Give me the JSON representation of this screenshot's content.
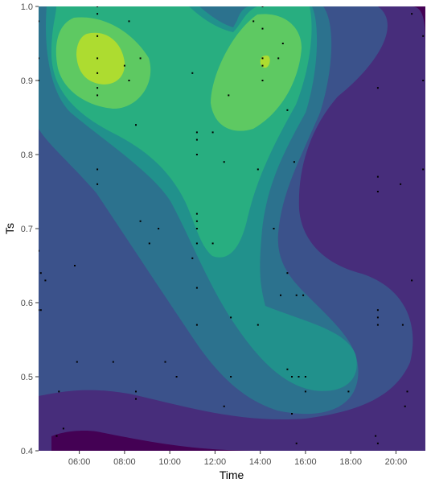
{
  "chart_data": {
    "type": "contour_density",
    "xlabel": "Time",
    "ylabel": "Ts",
    "x_ticks": [
      "06:00",
      "08:00",
      "10:00",
      "12:00",
      "14:00",
      "16:00",
      "18:00",
      "20:00"
    ],
    "y_ticks": [
      "0.4",
      "0.5",
      "0.6",
      "0.7",
      "0.8",
      "0.9",
      "1.0"
    ],
    "x_range_hours": [
      4.2,
      21.3
    ],
    "y_range": [
      0.4,
      1.0
    ],
    "grid": false,
    "legend": "none",
    "fill_levels": [
      "#440154",
      "#472d7b",
      "#3b528b",
      "#2c728e",
      "#21918c",
      "#28ae80",
      "#5ec962",
      "#addc30",
      "#fde725"
    ],
    "point_color": "#000000",
    "density_peaks": [
      {
        "x_hours": 6.8,
        "y": 0.93,
        "level": 8
      },
      {
        "x_hours": 14.1,
        "y": 0.92,
        "level": 8
      }
    ],
    "points": [
      {
        "x": 4.2,
        "y": 0.98
      },
      {
        "x": 4.2,
        "y": 0.93
      },
      {
        "x": 4.2,
        "y": 0.9
      },
      {
        "x": 4.2,
        "y": 0.67
      },
      {
        "x": 4.2,
        "y": 0.59
      },
      {
        "x": 4.3,
        "y": 0.64
      },
      {
        "x": 4.3,
        "y": 0.59
      },
      {
        "x": 4.5,
        "y": 0.63
      },
      {
        "x": 5.0,
        "y": 0.42
      },
      {
        "x": 5.1,
        "y": 0.48
      },
      {
        "x": 5.3,
        "y": 0.43
      },
      {
        "x": 5.8,
        "y": 0.65
      },
      {
        "x": 5.9,
        "y": 0.52
      },
      {
        "x": 6.8,
        "y": 1.0
      },
      {
        "x": 6.8,
        "y": 0.99
      },
      {
        "x": 6.8,
        "y": 0.96
      },
      {
        "x": 6.8,
        "y": 0.93
      },
      {
        "x": 6.8,
        "y": 0.91
      },
      {
        "x": 6.8,
        "y": 0.89
      },
      {
        "x": 6.8,
        "y": 0.88
      },
      {
        "x": 6.8,
        "y": 0.78
      },
      {
        "x": 6.8,
        "y": 0.76
      },
      {
        "x": 7.5,
        "y": 0.52
      },
      {
        "x": 8.0,
        "y": 0.92
      },
      {
        "x": 8.2,
        "y": 0.98
      },
      {
        "x": 8.2,
        "y": 0.9
      },
      {
        "x": 8.5,
        "y": 0.84
      },
      {
        "x": 8.5,
        "y": 0.48
      },
      {
        "x": 8.5,
        "y": 0.47
      },
      {
        "x": 8.7,
        "y": 0.93
      },
      {
        "x": 8.7,
        "y": 0.71
      },
      {
        "x": 9.1,
        "y": 0.68
      },
      {
        "x": 9.5,
        "y": 0.7
      },
      {
        "x": 9.8,
        "y": 0.52
      },
      {
        "x": 10.3,
        "y": 0.5
      },
      {
        "x": 11.0,
        "y": 0.91
      },
      {
        "x": 11.0,
        "y": 0.66
      },
      {
        "x": 11.2,
        "y": 0.83
      },
      {
        "x": 11.2,
        "y": 0.82
      },
      {
        "x": 11.2,
        "y": 0.8
      },
      {
        "x": 11.2,
        "y": 0.72
      },
      {
        "x": 11.2,
        "y": 0.71
      },
      {
        "x": 11.2,
        "y": 0.7
      },
      {
        "x": 11.2,
        "y": 0.68
      },
      {
        "x": 11.2,
        "y": 0.62
      },
      {
        "x": 11.2,
        "y": 0.57
      },
      {
        "x": 11.9,
        "y": 0.83
      },
      {
        "x": 11.9,
        "y": 0.68
      },
      {
        "x": 12.4,
        "y": 0.79
      },
      {
        "x": 12.4,
        "y": 0.46
      },
      {
        "x": 12.6,
        "y": 0.88
      },
      {
        "x": 12.7,
        "y": 0.58
      },
      {
        "x": 12.7,
        "y": 0.5
      },
      {
        "x": 13.7,
        "y": 0.98
      },
      {
        "x": 13.9,
        "y": 0.78
      },
      {
        "x": 13.9,
        "y": 0.57
      },
      {
        "x": 14.1,
        "y": 1.0
      },
      {
        "x": 14.1,
        "y": 0.97
      },
      {
        "x": 14.1,
        "y": 0.93
      },
      {
        "x": 14.1,
        "y": 0.92
      },
      {
        "x": 14.1,
        "y": 0.9
      },
      {
        "x": 14.6,
        "y": 0.7
      },
      {
        "x": 14.8,
        "y": 0.93
      },
      {
        "x": 14.9,
        "y": 0.61
      },
      {
        "x": 15.0,
        "y": 0.95
      },
      {
        "x": 15.2,
        "y": 0.64
      },
      {
        "x": 15.2,
        "y": 0.86
      },
      {
        "x": 15.2,
        "y": 0.51
      },
      {
        "x": 15.4,
        "y": 0.5
      },
      {
        "x": 15.4,
        "y": 0.45
      },
      {
        "x": 15.5,
        "y": 0.79
      },
      {
        "x": 15.6,
        "y": 0.61
      },
      {
        "x": 15.6,
        "y": 0.41
      },
      {
        "x": 15.7,
        "y": 0.5
      },
      {
        "x": 15.9,
        "y": 0.61
      },
      {
        "x": 16.0,
        "y": 0.5
      },
      {
        "x": 16.0,
        "y": 0.48
      },
      {
        "x": 17.9,
        "y": 0.48
      },
      {
        "x": 19.1,
        "y": 0.42
      },
      {
        "x": 19.2,
        "y": 0.89
      },
      {
        "x": 19.2,
        "y": 0.77
      },
      {
        "x": 19.2,
        "y": 0.75
      },
      {
        "x": 19.2,
        "y": 0.59
      },
      {
        "x": 19.2,
        "y": 0.58
      },
      {
        "x": 19.2,
        "y": 0.57
      },
      {
        "x": 19.2,
        "y": 0.41
      },
      {
        "x": 20.2,
        "y": 0.76
      },
      {
        "x": 20.3,
        "y": 0.57
      },
      {
        "x": 20.4,
        "y": 0.46
      },
      {
        "x": 20.5,
        "y": 0.48
      },
      {
        "x": 20.7,
        "y": 0.99
      },
      {
        "x": 20.7,
        "y": 0.63
      },
      {
        "x": 21.2,
        "y": 0.96
      },
      {
        "x": 21.2,
        "y": 0.9
      },
      {
        "x": 21.2,
        "y": 0.78
      }
    ]
  }
}
